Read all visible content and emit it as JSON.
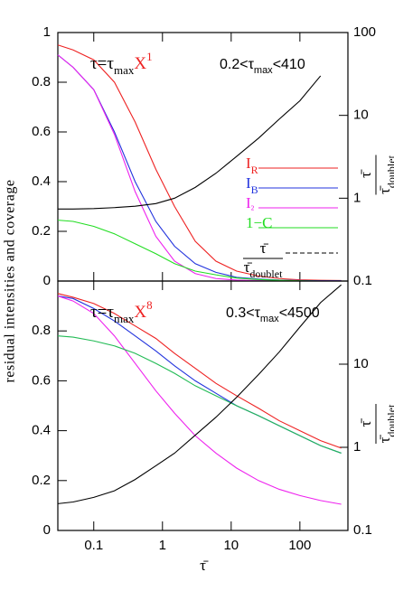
{
  "ylabel": "residual intensities and coverage",
  "chart_data": [
    {
      "type": "line",
      "xscale": "log",
      "y2scale": "log",
      "formula": [
        "τ=τ",
        "max",
        "X",
        "1"
      ],
      "range_note": [
        "0.2<τ",
        "max",
        "<410"
      ],
      "y2label": {
        "numerator": "τ̄",
        "denominator": "τ̄",
        "subscript": "doublet"
      },
      "xlim": [
        0.03,
        500
      ],
      "xticks": [
        0.1,
        1,
        10,
        100
      ],
      "show_xtick_labels": false,
      "ylim": [
        0,
        1
      ],
      "yticks": [
        0,
        0.2,
        0.4,
        0.6,
        0.8,
        1
      ],
      "y2lim": [
        0.1,
        100
      ],
      "y2ticks": [
        0.1,
        1,
        10,
        100
      ],
      "legend": true,
      "x": [
        0.03,
        0.05,
        0.1,
        0.2,
        0.4,
        0.8,
        1.5,
        3,
        6,
        12,
        25,
        50,
        100,
        200,
        400
      ],
      "series": [
        {
          "name": "IR",
          "color": "#ee2222",
          "values": [
            0.95,
            0.93,
            0.89,
            0.8,
            0.64,
            0.45,
            0.3,
            0.16,
            0.08,
            0.04,
            0.02,
            0.01,
            0.005,
            0.003,
            0.002
          ]
        },
        {
          "name": "IB",
          "color": "#2233dd",
          "values": [
            0.91,
            0.86,
            0.77,
            0.6,
            0.4,
            0.24,
            0.14,
            0.07,
            0.035,
            0.015,
            0.008,
            0.004,
            0.002,
            0.001,
            0.001
          ]
        },
        {
          "name": "I²",
          "color": "#ee22ee",
          "values": [
            0.91,
            0.86,
            0.77,
            0.59,
            0.36,
            0.18,
            0.08,
            0.03,
            0.01,
            0.004,
            0.002,
            0.001,
            0,
            0,
            0
          ]
        },
        {
          "name": "1−C",
          "color": "#22dd22",
          "values": [
            0.245,
            0.24,
            0.22,
            0.19,
            0.15,
            0.11,
            0.07,
            0.04,
            0.025,
            0.012,
            0.006,
            0.003,
            0.001,
            0,
            0
          ]
        },
        {
          "axis": "y2",
          "color": "#000000",
          "values": [
            0.74,
            0.74,
            0.75,
            0.77,
            0.8,
            0.86,
            1.0,
            1.35,
            2.0,
            3.2,
            5.3,
            9,
            15,
            30,
            null
          ]
        }
      ]
    },
    {
      "type": "line",
      "xscale": "log",
      "y2scale": "log",
      "formula": [
        "τ=τ",
        "max",
        "X",
        "8"
      ],
      "range_note": [
        "0.3<τ",
        "max",
        "<4500"
      ],
      "y2label": {
        "numerator": "τ̄",
        "denominator": "τ̄",
        "subscript": "doublet"
      },
      "xlabel": "τ̄",
      "xlim": [
        0.03,
        500
      ],
      "xticks": [
        0.1,
        1,
        10,
        100
      ],
      "show_xtick_labels": true,
      "ylim": [
        0,
        1
      ],
      "yticks": [
        0,
        0.2,
        0.4,
        0.6,
        0.8
      ],
      "y2lim": [
        0.1,
        100
      ],
      "y2ticks": [
        0.1,
        1,
        10
      ],
      "legend": false,
      "x": [
        0.03,
        0.05,
        0.1,
        0.2,
        0.4,
        0.8,
        1.5,
        3,
        6,
        12,
        25,
        50,
        100,
        200,
        400
      ],
      "series": [
        {
          "color": "#ee2222",
          "values": [
            0.95,
            0.935,
            0.91,
            0.87,
            0.82,
            0.77,
            0.71,
            0.65,
            0.59,
            0.54,
            0.49,
            0.44,
            0.4,
            0.36,
            0.33
          ]
        },
        {
          "color": "#2233dd",
          "values": [
            0.94,
            0.93,
            0.89,
            0.84,
            0.78,
            0.72,
            0.66,
            0.6,
            0.55,
            0.5,
            0.46,
            0.42,
            0.38,
            0.34,
            0.31
          ]
        },
        {
          "color": "#ee22ee",
          "values": [
            0.94,
            0.92,
            0.87,
            0.78,
            0.67,
            0.56,
            0.47,
            0.38,
            0.31,
            0.25,
            0.2,
            0.165,
            0.14,
            0.12,
            0.105
          ]
        },
        {
          "color": "#22bb55",
          "values": [
            0.78,
            0.775,
            0.76,
            0.74,
            0.71,
            0.67,
            0.63,
            0.58,
            0.54,
            0.5,
            0.46,
            0.42,
            0.38,
            0.34,
            0.31
          ]
        },
        {
          "axis": "y2",
          "color": "#000000",
          "values": [
            0.21,
            0.22,
            0.25,
            0.3,
            0.41,
            0.6,
            0.85,
            1.4,
            2.3,
            4,
            7.5,
            14,
            28,
            55,
            90
          ]
        }
      ]
    }
  ]
}
